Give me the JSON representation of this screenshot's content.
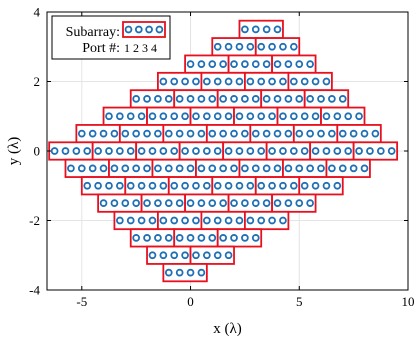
{
  "chart_data": {
    "type": "scatter",
    "xlabel": "x (λ)",
    "ylabel": "y (λ)",
    "xlim": [
      -6.6,
      10
    ],
    "ylim": [
      -4,
      4
    ],
    "x_ticks": [
      -5,
      0,
      5,
      10
    ],
    "y_ticks": [
      -4,
      -2,
      0,
      2,
      4
    ],
    "grid": true,
    "element_spacing": 0.5,
    "elements_per_subarray": 4,
    "colors": {
      "element": "#1f6fb5",
      "subarray_border": "#e8101e",
      "grid": "#e4e4e4",
      "axes": "#000000"
    },
    "subarray_rows": [
      {
        "y": 3.5,
        "starts": [
          2.5
        ]
      },
      {
        "y": 3.0,
        "starts": [
          1.25,
          3.25
        ]
      },
      {
        "y": 2.5,
        "starts": [
          0.0,
          2.0,
          4.0
        ]
      },
      {
        "y": 2.0,
        "starts": [
          -1.25,
          0.75,
          2.75,
          4.75
        ]
      },
      {
        "y": 1.5,
        "starts": [
          -2.5,
          -0.5,
          1.5,
          3.5,
          5.5
        ]
      },
      {
        "y": 1.0,
        "starts": [
          -3.75,
          -1.75,
          0.25,
          2.25,
          4.25,
          6.25
        ]
      },
      {
        "y": 0.5,
        "starts": [
          -5.0,
          -3.0,
          -1.0,
          1.0,
          3.0,
          5.0,
          7.0
        ]
      },
      {
        "y": 0.0,
        "starts": [
          -6.25,
          -4.25,
          -2.25,
          -0.25,
          1.75,
          3.75,
          5.75,
          7.75
        ]
      },
      {
        "y": -0.5,
        "starts": [
          -5.5,
          -3.5,
          -1.5,
          0.5,
          2.5,
          4.5,
          6.5
        ]
      },
      {
        "y": -1.0,
        "starts": [
          -4.75,
          -2.75,
          -0.75,
          1.25,
          3.25,
          5.25
        ]
      },
      {
        "y": -1.5,
        "starts": [
          -4.0,
          -2.0,
          0.0,
          2.0,
          4.0
        ]
      },
      {
        "y": -2.0,
        "starts": [
          -3.25,
          -1.25,
          0.75,
          2.75
        ]
      },
      {
        "y": -2.5,
        "starts": [
          -2.5,
          -0.5,
          1.5
        ]
      },
      {
        "y": -3.0,
        "starts": [
          -1.75,
          0.25
        ]
      },
      {
        "y": -3.5,
        "starts": [
          -1.0
        ]
      }
    ],
    "legend": {
      "position": "top-left",
      "subarray_label": "Subarray:",
      "port_label": "Port #:",
      "port_numbers": "1 2 3 4"
    }
  }
}
